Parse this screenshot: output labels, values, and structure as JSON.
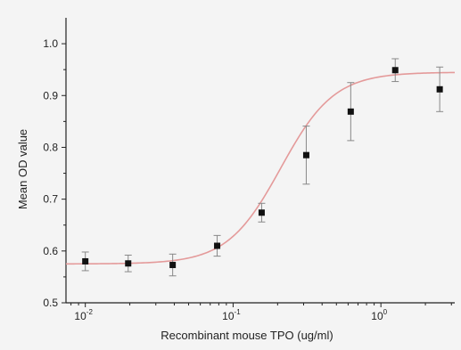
{
  "chart_data": {
    "type": "scatter",
    "title": "",
    "xlabel": "Recombinant mouse TPO (ug/ml)",
    "ylabel": "Mean OD value",
    "x_scale": "log",
    "xlim": [
      0.0074,
      3.16
    ],
    "ylim": [
      0.5,
      1.05
    ],
    "x_ticks": [
      {
        "value": 0.01,
        "base": "10",
        "exp": "-2"
      },
      {
        "value": 0.1,
        "base": "10",
        "exp": "-1"
      },
      {
        "value": 1,
        "base": "10",
        "exp": "0"
      }
    ],
    "y_ticks": [
      "0.5",
      "0.6",
      "0.7",
      "0.8",
      "0.9",
      "1.0"
    ],
    "grid": false,
    "series": [
      {
        "type": "scatter",
        "marker": "square",
        "color": "#111111",
        "x": [
          0.01,
          0.0195,
          0.039,
          0.078,
          0.156,
          0.3125,
          0.625,
          1.25,
          2.5
        ],
        "y": [
          0.58,
          0.576,
          0.573,
          0.61,
          0.674,
          0.785,
          0.869,
          0.949,
          0.912
        ],
        "error": [
          0.018,
          0.016,
          0.021,
          0.02,
          0.018,
          0.056,
          0.056,
          0.022,
          0.043
        ]
      },
      {
        "type": "line",
        "style": "fitted sigmoid",
        "color": "#e49a9a",
        "bottom": 0.575,
        "top": 0.945,
        "ec50": 0.21,
        "hill": 2.4
      }
    ]
  }
}
